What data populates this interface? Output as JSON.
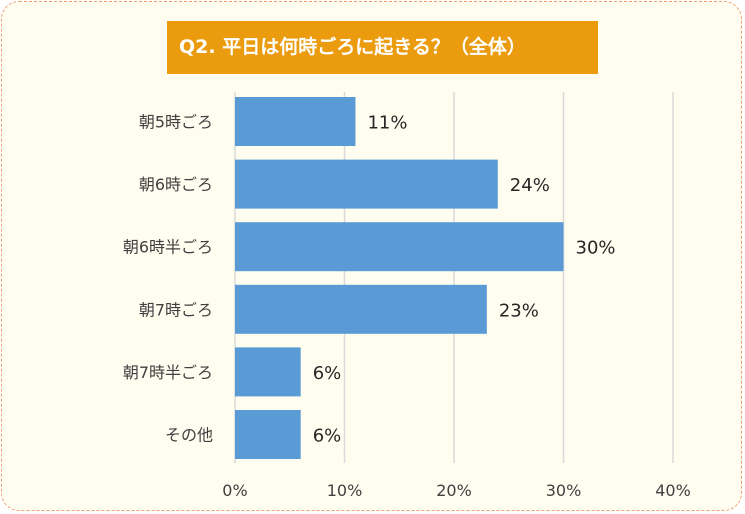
{
  "chart_data": {
    "type": "bar",
    "orientation": "horizontal",
    "title": "Q2. 平日は何時ごろに起きる？（全体）",
    "categories": [
      "朝5時ごろ",
      "朝6時ごろ",
      "朝6時半ごろ",
      "朝7時ごろ",
      "朝7時半ごろ",
      "その他"
    ],
    "values": [
      11,
      24,
      30,
      23,
      6,
      6
    ],
    "value_labels": [
      "11%",
      "24%",
      "30%",
      "23%",
      "6%",
      "6%"
    ],
    "xlim": [
      0,
      40
    ],
    "xticks": [
      0,
      10,
      20,
      30,
      40
    ],
    "xtick_labels": [
      "0%",
      "10%",
      "20%",
      "30%",
      "40%"
    ],
    "xlabel": "",
    "ylabel": "",
    "grid": "vertical",
    "legend": "none",
    "colors": {
      "bar": "#5b9bd5",
      "title_bg": "#eb9c0e",
      "background": "#fffdf0",
      "border": "#f0a070",
      "grid": "#d9d9d9"
    }
  }
}
